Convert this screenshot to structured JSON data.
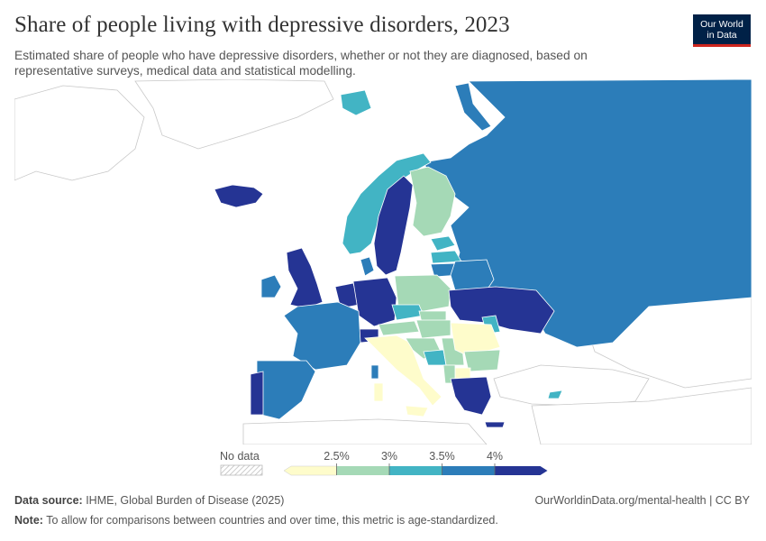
{
  "header": {
    "title": "Share of people living with depressive disorders, 2023",
    "subtitle": "Estimated share of people who have depressive disorders, whether or not they are diagnosed, based on representative surveys, medical data and statistical modelling.",
    "logo_line1": "Our World",
    "logo_line2": "in Data"
  },
  "legend": {
    "no_data_label": "No data",
    "bins": [
      {
        "label": "",
        "color": "#fefccb"
      },
      {
        "label": "2.5%",
        "color": "#a5d9b6"
      },
      {
        "label": "3%",
        "color": "#42b4c4"
      },
      {
        "label": "3.5%",
        "color": "#2c7db9"
      },
      {
        "label": "4%",
        "color": "#253494"
      }
    ]
  },
  "colors": {
    "lt2_5": "#fefccb",
    "b2_5_3": "#a5d9b6",
    "b3_3_5": "#42b4c4",
    "b3_5_4": "#2c7db9",
    "gt4": "#253494",
    "no_data": "#ffffff",
    "border": "#bbbbbb"
  },
  "footer": {
    "source_label": "Data source:",
    "source_text": " IHME, Global Burden of Disease (2025)",
    "url": "OurWorldinData.org/mental-health | CC BY",
    "note_label": "Note:",
    "note_text": " To allow for comparisons between countries and over time, this metric is age-standardized."
  }
}
